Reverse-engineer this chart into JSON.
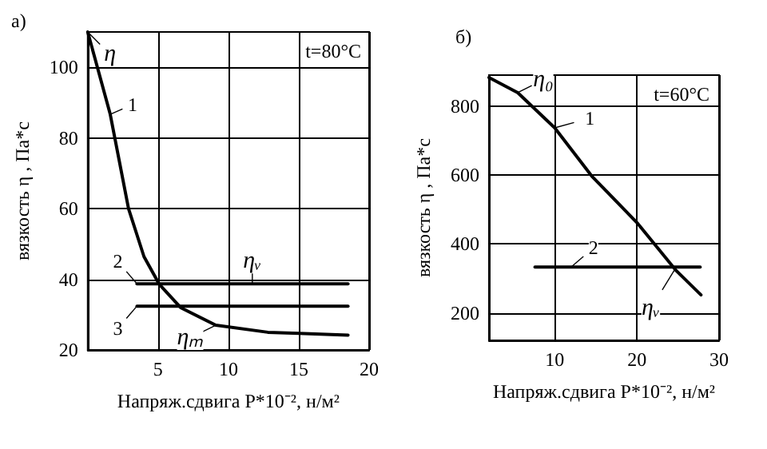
{
  "chart_data": [
    {
      "type": "line",
      "title": "а)",
      "xlabel": "Напряж.сдвига P*10⁻², н/м²",
      "ylabel": "вязкость η , Па*с",
      "xlim": [
        0,
        20
      ],
      "xticks": [
        5,
        10,
        15,
        20
      ],
      "ylim": [
        20,
        110
      ],
      "yticks": [
        20,
        40,
        60,
        80,
        100
      ],
      "grid": true,
      "marker": "none",
      "line_style": "solid",
      "series": [
        {
          "color": "#000000",
          "x": [
            0,
            1.6,
            2.9,
            4,
            5.1,
            6.6,
            9.1,
            12.8,
            15,
            18.5
          ],
          "values": [
            110,
            86.7,
            60,
            46.4,
            38.5,
            32,
            27,
            25,
            24.7,
            24.2
          ]
        },
        {
          "color": "#000000",
          "x": [
            3.5,
            18.5
          ],
          "values": [
            38.7,
            38.7
          ]
        },
        {
          "color": "#000000",
          "x": [
            3.5,
            18.5
          ],
          "values": [
            32.4,
            32.4
          ]
        }
      ],
      "annotations": [
        "t=80°C",
        {
          "text": "1",
          "x": 1.6,
          "y": 86.7
        },
        {
          "text": "2",
          "x": 3.5,
          "y": 38.7
        },
        {
          "text": "3",
          "x": 3.5,
          "y": 32.4
        },
        {
          "text": "η",
          "x": 0,
          "y": 110
        },
        {
          "text": "ηᵥ",
          "x": 11.7,
          "y": 38.7
        },
        {
          "text": "ηₘ",
          "x": 9.1,
          "y": 27
        }
      ]
    },
    {
      "type": "line",
      "title": "б)",
      "xlabel": "Напряж.сдвига P*10⁻², н/м²",
      "ylabel": "вязкость η , Па*с",
      "xlim": [
        2,
        30
      ],
      "xticks": [
        10,
        20,
        30
      ],
      "ylim": [
        120,
        890
      ],
      "yticks": [
        200,
        400,
        600,
        800
      ],
      "grid": true,
      "marker": "none",
      "line_style": "solid",
      "series": [
        {
          "color": "#000000",
          "x": [
            2,
            5.5,
            10,
            14.5,
            20,
            24.8,
            27.8
          ],
          "values": [
            883,
            839,
            737,
            597,
            462,
            322,
            252
          ]
        },
        {
          "color": "#000000",
          "x": [
            7.6,
            27.7
          ],
          "values": [
            333,
            333
          ]
        }
      ],
      "annotations": [
        "t=60°C",
        {
          "text": "1",
          "x": 10,
          "y": 737
        },
        {
          "text": "2",
          "x": 12,
          "y": 333
        },
        {
          "text": "η₀",
          "x": 5.5,
          "y": 839
        },
        {
          "text": "ηᵥ",
          "x": 24.8,
          "y": 333
        }
      ]
    }
  ]
}
